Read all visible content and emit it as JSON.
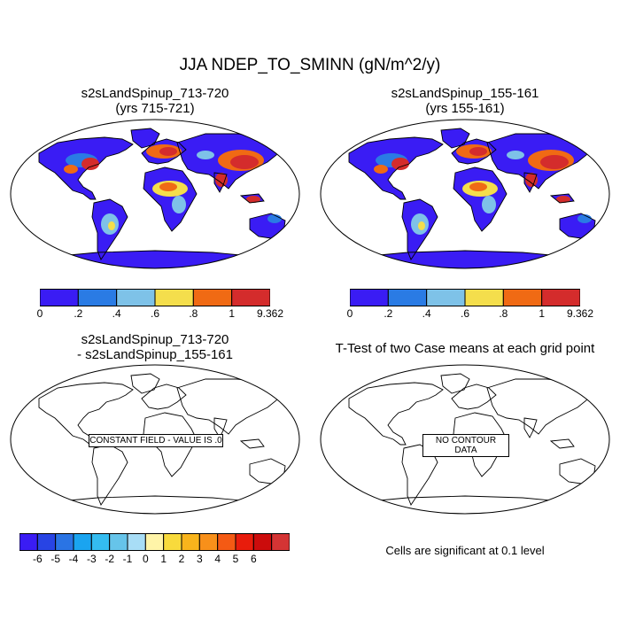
{
  "title": "JJA NDEP_TO_SMINN (gN/m^2/y)",
  "panels": [
    {
      "id": "case1",
      "title_line1": "s2sLandSpinup_713-720",
      "title_line2": "(yrs 715-721)",
      "fill": "filled"
    },
    {
      "id": "case2",
      "title_line1": "s2sLandSpinup_155-161",
      "title_line2": "(yrs 155-161)",
      "fill": "filled"
    },
    {
      "id": "diff",
      "title_line1": "s2sLandSpinup_713-720",
      "title_line2": "- s2sLandSpinup_155-161",
      "fill": "empty",
      "box_text": "CONSTANT FIELD - VALUE IS .0"
    },
    {
      "id": "ttest",
      "title_line1": "T-Test of two Case means at each grid point",
      "title_line2": "",
      "fill": "empty",
      "box_text": "NO CONTOUR DATA"
    }
  ],
  "colorbar_main": {
    "colors": [
      "#3a1cf4",
      "#2a7be4",
      "#7ec2e8",
      "#f4de4c",
      "#f06a14",
      "#d42c2c"
    ],
    "labels": [
      "0",
      ".2",
      ".4",
      ".6",
      ".8",
      "1",
      "9.362"
    ]
  },
  "colorbar_diff": {
    "colors": [
      "#3a1cf4",
      "#2844e4",
      "#2a74e4",
      "#1aa4f0",
      "#34bcf0",
      "#66c4ea",
      "#a8ddf6",
      "#fff4a8",
      "#f8da3c",
      "#f8b41c",
      "#f8901a",
      "#f45a14",
      "#e81c0c",
      "#cc0c0c",
      "#d43434"
    ],
    "labels": [
      "-6",
      "-5",
      "-4",
      "-3",
      "-2",
      "-1",
      "0",
      "1",
      "2",
      "3",
      "4",
      "5",
      "6"
    ]
  },
  "significance_note": "Cells are significant at 0.1 level"
}
